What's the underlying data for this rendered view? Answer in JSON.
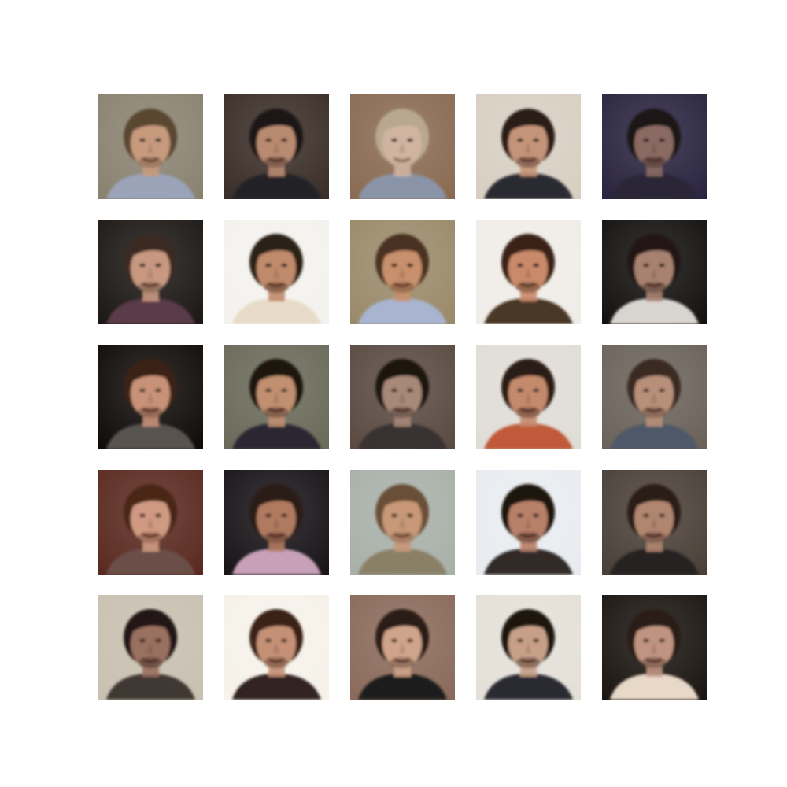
{
  "grid": {
    "rows": 5,
    "columns": 5,
    "tiles": [
      {
        "bg": "#8a8270",
        "hair": "#5a4632",
        "skin": "#c79a7e",
        "shirt": "#9aa3b8"
      },
      {
        "bg": "#3a2e28",
        "hair": "#1e1612",
        "skin": "#b88a70",
        "shirt": "#222428"
      },
      {
        "bg": "#8a6a52",
        "hair": "#b8a890",
        "skin": "#d0b4a0",
        "shirt": "#8a94a8"
      },
      {
        "bg": "#d8cfc2",
        "hair": "#2a1e16",
        "skin": "#c49478",
        "shirt": "#2a2c30"
      },
      {
        "bg": "#2a2440",
        "hair": "#1a1418",
        "skin": "#8a6a62",
        "shirt": "#2a2838"
      },
      {
        "bg": "#1c1816",
        "hair": "#3a2a20",
        "skin": "#c89880",
        "shirt": "#5a3a48"
      },
      {
        "bg": "#f4f2ee",
        "hair": "#2a2018",
        "skin": "#c08a6c",
        "shirt": "#e8dcc8"
      },
      {
        "bg": "#9a8a6a",
        "hair": "#4a3020",
        "skin": "#c8906c",
        "shirt": "#a8b4d0"
      },
      {
        "bg": "#f0ece8",
        "hair": "#3a2418",
        "skin": "#c88a6a",
        "shirt": "#4a3828"
      },
      {
        "bg": "#141210",
        "hair": "#201814",
        "skin": "#a88270",
        "shirt": "#d8d4d0"
      },
      {
        "bg": "#100c0a",
        "hair": "#3a2418",
        "skin": "#c89278",
        "shirt": "#585250"
      },
      {
        "bg": "#6a6a5a",
        "hair": "#1e1410",
        "skin": "#c09070",
        "shirt": "#2a2830"
      },
      {
        "bg": "#5a4a42",
        "hair": "#1a1410",
        "skin": "#a88878",
        "shirt": "#383030"
      },
      {
        "bg": "#e0dcd6",
        "hair": "#2a1c14",
        "skin": "#c48a6c",
        "shirt": "#c05a3a"
      },
      {
        "bg": "#6a625a",
        "hair": "#3a2c22",
        "skin": "#b8907a",
        "shirt": "#505868"
      },
      {
        "bg": "#5a2a20",
        "hair": "#4a2818",
        "skin": "#d09a82",
        "shirt": "#6a5048"
      },
      {
        "bg": "#181418",
        "hair": "#2a1a14",
        "skin": "#b07a60",
        "shirt": "#c8a0b8"
      },
      {
        "bg": "#a8b0a8",
        "hair": "#6a5038",
        "skin": "#c89878",
        "shirt": "#8a8068"
      },
      {
        "bg": "#e8ecf0",
        "hair": "#1e1610",
        "skin": "#b88068",
        "shirt": "#302a28"
      },
      {
        "bg": "#4a4038",
        "hair": "#2a1e18",
        "skin": "#b08670",
        "shirt": "#282420"
      },
      {
        "bg": "#c8c0b0",
        "hair": "#201814",
        "skin": "#9a7060",
        "shirt": "#403830"
      },
      {
        "bg": "#f6f2ea",
        "hair": "#3a2418",
        "skin": "#c49076",
        "shirt": "#302420"
      },
      {
        "bg": "#8a6a5a",
        "hair": "#2a1c14",
        "skin": "#d0a48a",
        "shirt": "#1c1a1a"
      },
      {
        "bg": "#e4e0d8",
        "hair": "#1e1410",
        "skin": "#c8a088",
        "shirt": "#2a2a30"
      },
      {
        "bg": "#1c1612",
        "hair": "#2a1c16",
        "skin": "#c09480",
        "shirt": "#e8d8c8"
      }
    ]
  }
}
